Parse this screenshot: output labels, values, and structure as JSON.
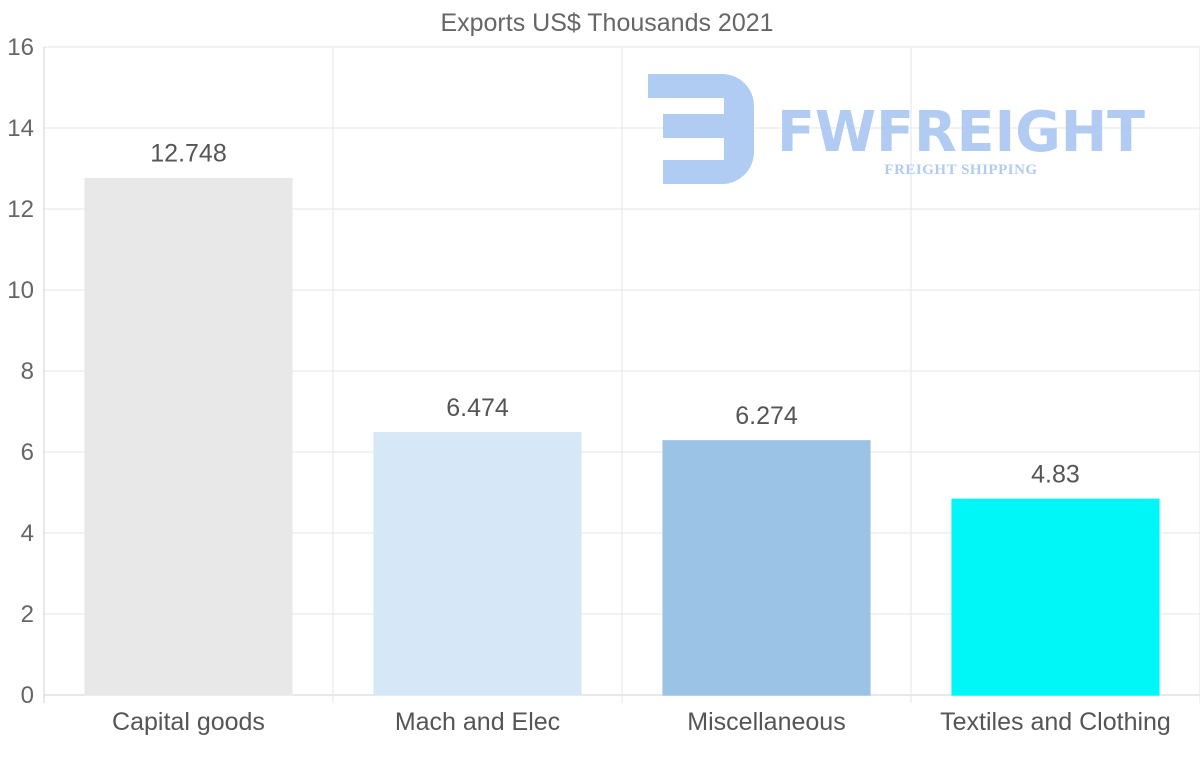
{
  "chart_data": {
    "type": "bar",
    "title": "Exports US$ Thousands 2021",
    "categories": [
      "Capital goods",
      "Mach and Elec",
      "Miscellaneous",
      "Textiles and Clothing"
    ],
    "values": [
      12.748,
      6.474,
      6.274,
      4.83
    ],
    "value_labels": [
      "12.748",
      "6.474",
      "6.274",
      "4.83"
    ],
    "bar_colors": [
      "#e8e8e8",
      "#d6e8f8",
      "#9bc3e6",
      "#00f7f7"
    ],
    "ylim": [
      0,
      16
    ],
    "yticks": [
      0,
      2,
      4,
      6,
      8,
      10,
      12,
      14,
      16
    ],
    "xlabel": "",
    "ylabel": "",
    "grid": true,
    "legend": "none"
  },
  "watermark": {
    "brand": "FWFREIGHT",
    "tagline": "FREIGHT SHIPPING",
    "color": "#a9c6f2"
  }
}
